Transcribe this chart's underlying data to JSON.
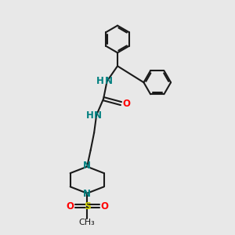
{
  "background_color": "#e8e8e8",
  "bond_color": "#1a1a1a",
  "bond_width": 1.5,
  "N_color": "#008080",
  "O_color": "#ff0000",
  "S_color": "#cccc00",
  "font_size": 8.5,
  "figsize": [
    3.0,
    3.0
  ],
  "dpi": 100,
  "xlim": [
    0,
    10
  ],
  "ylim": [
    0,
    10
  ]
}
